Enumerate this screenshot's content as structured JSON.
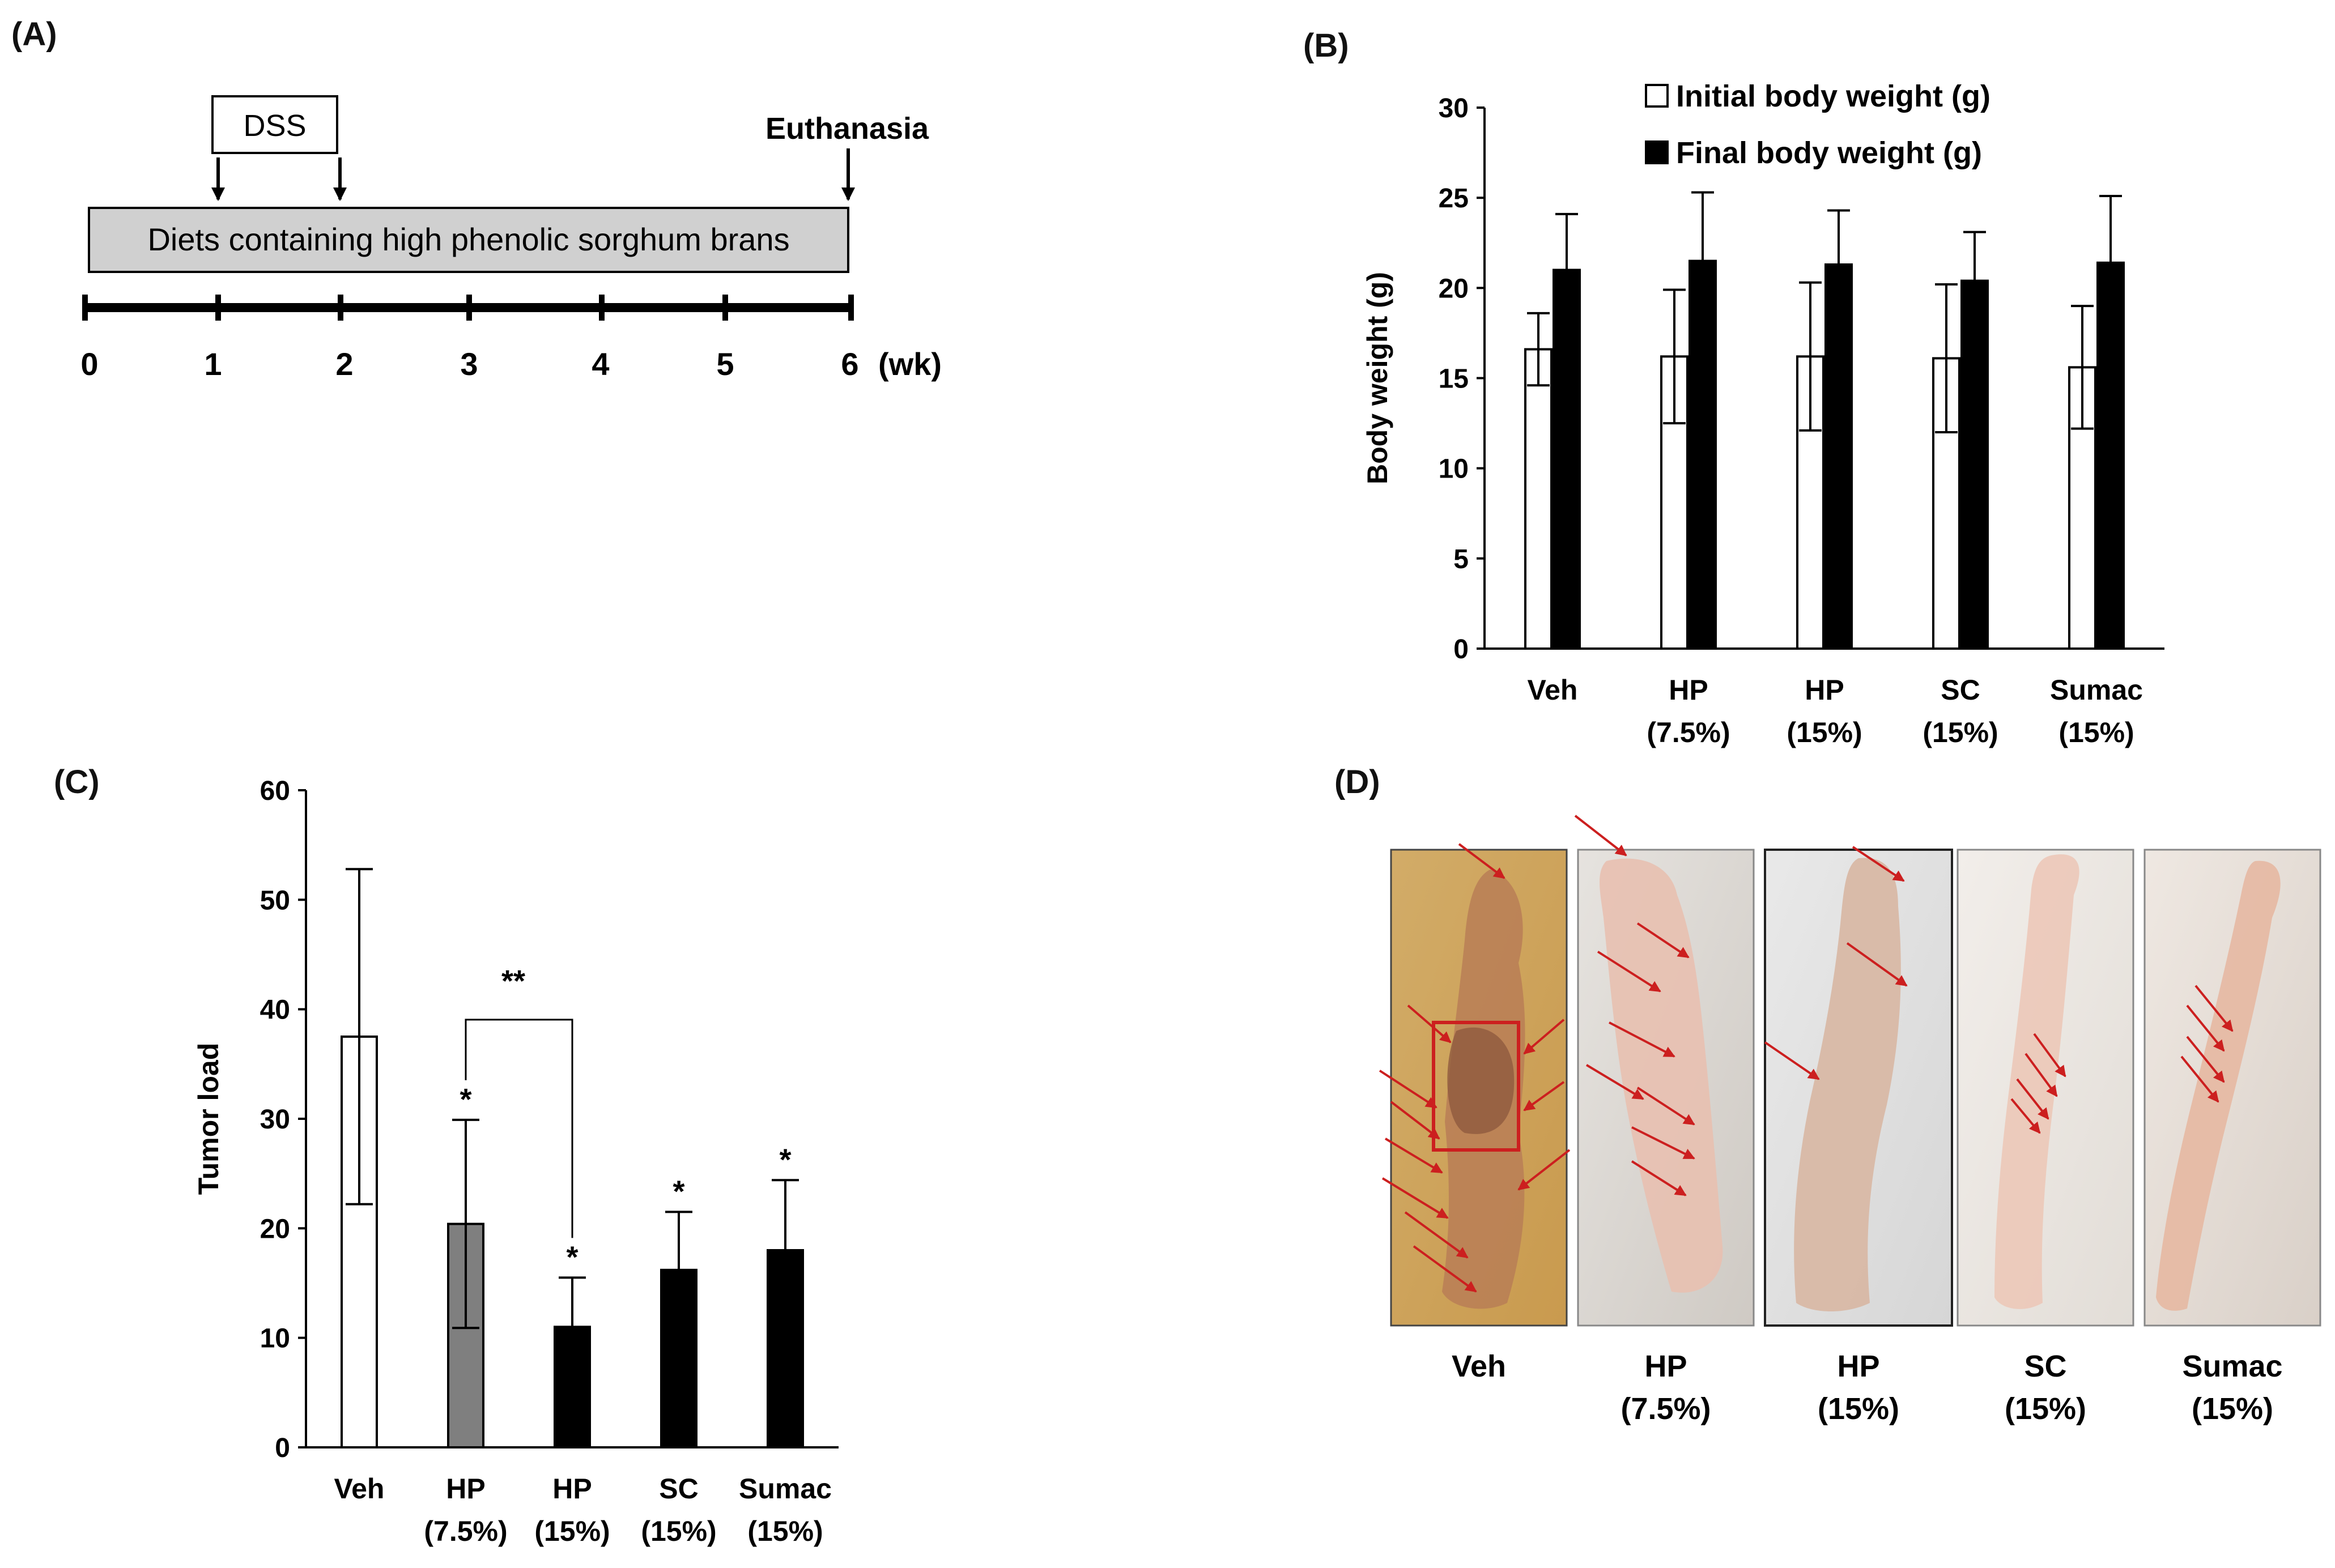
{
  "panels": {
    "a": {
      "label": "(A)",
      "dss_label": "DSS",
      "euthanasia_label": "Euthanasia",
      "diet_label": "Diets containing high phenolic sorghum brans",
      "weeks": [
        "0",
        "1",
        "2",
        "3",
        "4",
        "5",
        "6"
      ],
      "unit_label": "(wk)"
    },
    "b": {
      "label": "(B)"
    },
    "c": {
      "label": "(C)"
    },
    "d": {
      "label": "(D)",
      "captions": [
        {
          "line1": "Veh",
          "line2": ""
        },
        {
          "line1": "HP",
          "line2": "(7.5%)"
        },
        {
          "line1": "HP",
          "line2": "(15%)"
        },
        {
          "line1": "SC",
          "line2": "(15%)"
        },
        {
          "line1": "Sumac",
          "line2": "(15%)"
        }
      ]
    }
  },
  "colors": {
    "arrow_red": "#cc1f1f",
    "bar_gray": "#7f7f7f",
    "bar_black": "#000000",
    "timeline_box": "#d0d0d0"
  },
  "chart_data": [
    {
      "id": "body_weight",
      "type": "bar",
      "title": "",
      "xlabel": "",
      "ylabel": "Body weight (g)",
      "ylim": [
        0,
        30
      ],
      "yticks": [
        0,
        5,
        10,
        15,
        20,
        25,
        30
      ],
      "categories": [
        {
          "line1": "Veh",
          "line2": ""
        },
        {
          "line1": "HP",
          "line2": "(7.5%)"
        },
        {
          "line1": "HP",
          "line2": "(15%)"
        },
        {
          "line1": "SC",
          "line2": "(15%)"
        },
        {
          "line1": "Sumac",
          "line2": "(15%)"
        }
      ],
      "series": [
        {
          "name": "Initial body weight (g)",
          "values": [
            16.6,
            16.2,
            16.2,
            16.1,
            15.6
          ],
          "errors": [
            2.0,
            3.7,
            4.1,
            4.1,
            3.4
          ]
        },
        {
          "name": "Final body weight (g)",
          "values": [
            21.0,
            21.5,
            21.3,
            20.4,
            21.4
          ],
          "errors": [
            3.1,
            3.8,
            3.0,
            2.7,
            3.7
          ]
        }
      ],
      "legend": "top-right"
    },
    {
      "id": "tumor_load",
      "type": "bar",
      "title": "",
      "xlabel": "",
      "ylabel": "Tumor load",
      "ylim": [
        0,
        60
      ],
      "yticks": [
        0,
        10,
        20,
        30,
        40,
        50,
        60
      ],
      "categories": [
        {
          "line1": "Veh",
          "line2": ""
        },
        {
          "line1": "HP",
          "line2": "(7.5%)"
        },
        {
          "line1": "HP",
          "line2": "(15%)"
        },
        {
          "line1": "SC",
          "line2": "(15%)"
        },
        {
          "line1": "Sumac",
          "line2": "(15%)"
        }
      ],
      "values": [
        37.5,
        20.4,
        11.0,
        16.2,
        18.0
      ],
      "errors": [
        15.3,
        9.5,
        4.5,
        5.3,
        6.4
      ],
      "fills": [
        "white",
        "gray",
        "black",
        "black",
        "black"
      ],
      "significance": [
        "",
        "*",
        "*",
        "*",
        "*"
      ],
      "bracket": {
        "from": 1,
        "to": 2,
        "label": "**"
      }
    }
  ]
}
